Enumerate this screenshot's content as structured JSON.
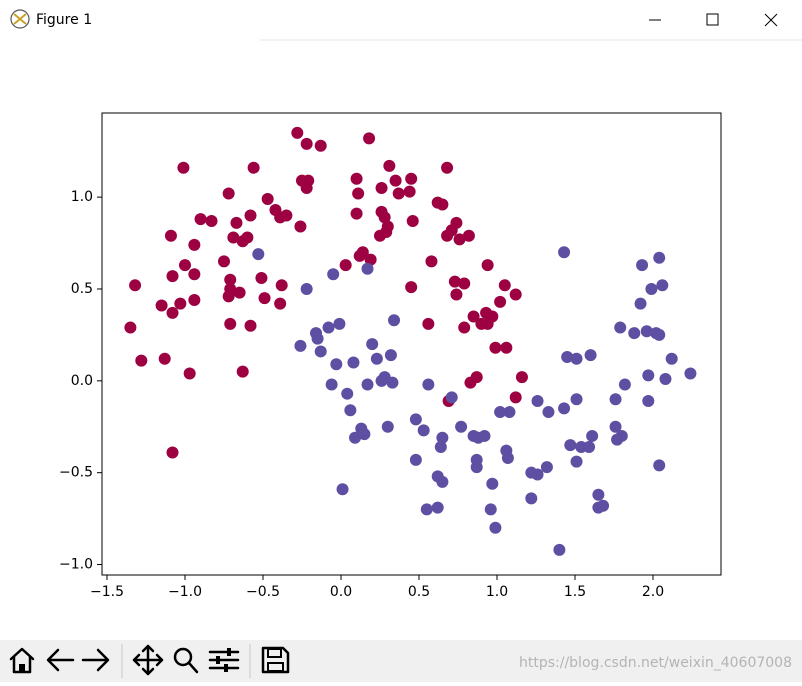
{
  "window": {
    "title": "Figure 1"
  },
  "watermark": "https://blog.csdn.net/weixin_40607008",
  "chart_data": {
    "type": "scatter",
    "xlim": [
      -1.532,
      2.436
    ],
    "ylim": [
      -1.057,
      1.458
    ],
    "xticks": [
      {
        "value": -1.5,
        "label": "−1.5"
      },
      {
        "value": -1.0,
        "label": "−1.0"
      },
      {
        "value": -0.5,
        "label": "−0.5"
      },
      {
        "value": 0.0,
        "label": "0.0"
      },
      0.5,
      {
        "value": 1.0,
        "label": "1.0"
      },
      1.5,
      {
        "value": 2.0,
        "label": "2.0"
      }
    ],
    "yticks": [
      {
        "value": -1.0,
        "label": "−1.0"
      },
      {
        "value": -0.5,
        "label": "−0.5"
      },
      {
        "value": 0.0,
        "label": "0.0"
      },
      0.5,
      {
        "value": 1.0,
        "label": "1.0"
      }
    ],
    "series": [
      {
        "color": "#9e0142",
        "x": [
          -1.35,
          -1.32,
          -1.28,
          -1.13,
          -1.15,
          -1.08,
          -1.09,
          -1.08,
          -1.08,
          -1.03,
          -1.01,
          -1.0,
          -0.97,
          -0.94,
          -0.94,
          -0.94,
          -0.9,
          -0.83,
          -0.75,
          -0.72,
          -0.71,
          -0.71,
          -0.72,
          -0.71,
          -0.69,
          -0.67,
          -0.65,
          -0.63,
          -0.63,
          -0.6,
          -0.58,
          -0.56,
          -0.58,
          -0.51,
          -0.49,
          -0.47,
          -0.42,
          -0.38,
          -0.39,
          -0.39,
          -0.35,
          -0.28,
          -0.26,
          -0.25,
          -0.22,
          -0.22,
          -0.21,
          -0.13,
          0.03,
          0.1,
          0.11,
          0.1,
          0.12,
          0.14,
          0.18,
          0.19,
          0.26,
          0.26,
          0.28,
          0.25,
          0.29,
          0.3,
          0.31,
          0.35,
          0.37,
          0.45,
          0.44,
          0.46,
          0.45,
          0.56,
          0.58,
          0.62,
          0.65,
          0.68,
          0.68,
          0.71,
          0.73,
          0.74,
          0.74,
          0.76,
          0.82,
          0.79,
          0.79,
          0.83,
          0.87,
          0.85,
          0.9,
          0.93,
          0.94,
          0.94,
          0.97,
          0.99,
          1.02,
          1.05,
          1.06,
          1.12,
          1.12,
          1.16,
          0.69
        ],
        "values": [
          0.29,
          0.52,
          0.11,
          0.12,
          0.41,
          -0.39,
          0.79,
          0.57,
          0.37,
          0.42,
          1.16,
          0.63,
          0.04,
          0.74,
          0.58,
          0.44,
          0.88,
          0.87,
          0.65,
          1.02,
          0.55,
          0.5,
          0.46,
          0.31,
          0.78,
          0.86,
          0.48,
          0.05,
          0.76,
          0.78,
          0.3,
          1.16,
          0.9,
          0.56,
          0.45,
          0.99,
          0.93,
          0.52,
          0.42,
          0.89,
          0.9,
          1.35,
          0.84,
          1.09,
          1.29,
          1.05,
          1.09,
          1.28,
          0.63,
          1.1,
          1.02,
          0.91,
          0.68,
          0.7,
          1.32,
          0.66,
          1.05,
          0.92,
          0.89,
          0.79,
          0.81,
          0.84,
          1.17,
          1.09,
          1.02,
          1.1,
          1.03,
          0.87,
          0.51,
          0.31,
          0.65,
          0.97,
          0.96,
          1.16,
          0.79,
          0.82,
          0.54,
          0.47,
          0.86,
          0.77,
          0.79,
          0.53,
          0.29,
          -0.01,
          0.02,
          0.35,
          0.31,
          0.37,
          0.63,
          0.31,
          0.35,
          0.18,
          0.43,
          0.52,
          0.18,
          0.47,
          -0.09,
          0.02,
          -0.11
        ]
      },
      {
        "color": "#5e4fa2",
        "x": [
          -0.53,
          -0.26,
          -0.22,
          -0.16,
          -0.15,
          -0.13,
          -0.08,
          -0.06,
          -0.05,
          -0.03,
          -0.01,
          0.01,
          0.04,
          0.06,
          0.08,
          0.09,
          0.13,
          0.17,
          0.17,
          0.15,
          0.2,
          0.23,
          0.26,
          0.28,
          0.3,
          0.32,
          0.34,
          0.33,
          0.48,
          0.48,
          0.53,
          0.56,
          0.55,
          0.62,
          0.62,
          0.64,
          0.65,
          0.65,
          0.71,
          0.77,
          0.85,
          0.87,
          0.87,
          0.88,
          0.92,
          0.96,
          0.97,
          0.99,
          1.02,
          1.06,
          1.07,
          1.08,
          1.22,
          1.22,
          1.26,
          1.26,
          1.32,
          1.33,
          1.4,
          1.43,
          1.43,
          1.45,
          1.47,
          1.51,
          1.51,
          1.51,
          1.54,
          1.6,
          1.61,
          1.59,
          1.65,
          1.65,
          1.68,
          1.76,
          1.76,
          1.77,
          1.8,
          1.79,
          1.82,
          1.88,
          1.92,
          1.93,
          1.96,
          1.97,
          1.97,
          1.99,
          2.02,
          2.04,
          2.04,
          2.04,
          2.06,
          2.08,
          2.12,
          2.24
        ],
        "values": [
          0.69,
          0.19,
          0.5,
          0.26,
          0.23,
          0.16,
          0.29,
          -0.02,
          0.58,
          0.09,
          0.31,
          -0.59,
          -0.07,
          -0.16,
          0.1,
          -0.31,
          -0.26,
          -0.02,
          0.61,
          -0.29,
          0.2,
          0.12,
          0.0,
          0.02,
          -0.25,
          0.14,
          0.33,
          -0.01,
          -0.21,
          -0.43,
          -0.27,
          -0.02,
          -0.7,
          -0.69,
          -0.52,
          -0.36,
          -0.55,
          -0.31,
          -0.09,
          -0.25,
          -0.3,
          -0.43,
          -0.47,
          -0.31,
          -0.3,
          -0.7,
          -0.56,
          -0.8,
          -0.17,
          -0.38,
          -0.42,
          -0.17,
          -0.5,
          -0.64,
          -0.11,
          -0.51,
          -0.47,
          -0.17,
          -0.92,
          -0.15,
          0.7,
          0.13,
          -0.35,
          0.12,
          -0.1,
          -0.44,
          -0.36,
          0.14,
          -0.3,
          -0.36,
          -0.62,
          -0.69,
          -0.68,
          -0.1,
          -0.25,
          -0.32,
          -0.3,
          0.29,
          -0.02,
          0.26,
          0.42,
          0.63,
          0.27,
          -0.11,
          0.03,
          0.5,
          0.26,
          0.25,
          -0.46,
          0.67,
          0.52,
          0.01,
          0.12,
          0.04
        ]
      }
    ]
  }
}
